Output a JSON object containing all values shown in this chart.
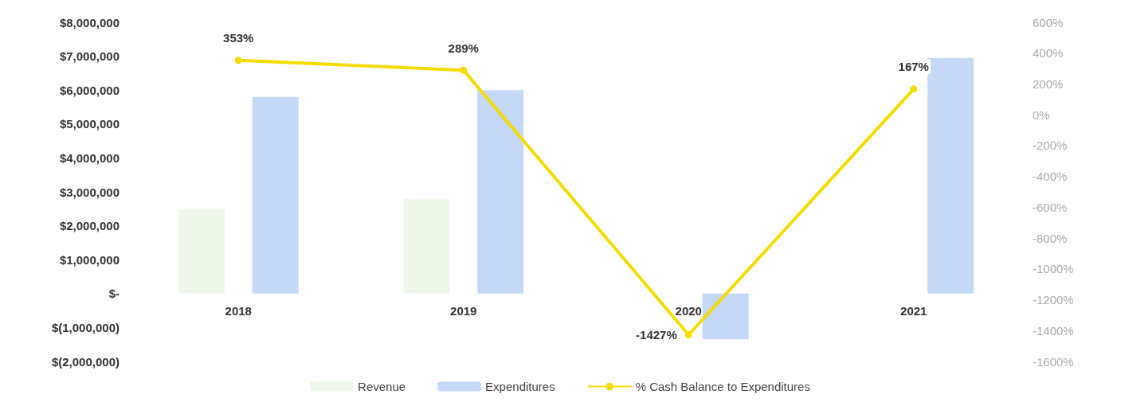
{
  "chart_data": {
    "type": "bar",
    "categories": [
      "2018",
      "2019",
      "2020",
      "2021"
    ],
    "series": [
      {
        "name": "Revenue",
        "color": "#eef7ea",
        "values": [
          2500000,
          2800000,
          null,
          null
        ]
      },
      {
        "name": "Expenditures",
        "color": "#c5d8f7",
        "values": [
          5800000,
          6000000,
          -1350000,
          6950000
        ]
      },
      {
        "name": "% Cash Balance to Expenditures",
        "type": "line",
        "axis": "y2",
        "color": "#f5dc00",
        "values": [
          353,
          289,
          -1427,
          167
        ],
        "value_labels": [
          "353%",
          "289%",
          "-1427%",
          "167%"
        ]
      }
    ],
    "ylim": [
      -2000000,
      8000000
    ],
    "yticks": [
      {
        "value": -2000000,
        "label": "$(2,000,000)"
      },
      {
        "value": -1000000,
        "label": "$(1,000,000)"
      },
      {
        "value": 0,
        "label": "$-"
      },
      {
        "value": 1000000,
        "label": "$1,000,000"
      },
      {
        "value": 2000000,
        "label": "$2,000,000"
      },
      {
        "value": 3000000,
        "label": "$3,000,000"
      },
      {
        "value": 4000000,
        "label": "$4,000,000"
      },
      {
        "value": 5000000,
        "label": "$5,000,000"
      },
      {
        "value": 6000000,
        "label": "$6,000,000"
      },
      {
        "value": 7000000,
        "label": "$7,000,000"
      },
      {
        "value": 8000000,
        "label": "$8,000,000"
      }
    ],
    "y2lim": [
      -1600,
      600
    ],
    "y2ticks": [
      {
        "value": -1600,
        "label": "-1600%"
      },
      {
        "value": -1400,
        "label": "-1400%"
      },
      {
        "value": -1200,
        "label": "-1200%"
      },
      {
        "value": -1000,
        "label": "-1000%"
      },
      {
        "value": -800,
        "label": "-800%"
      },
      {
        "value": -600,
        "label": "-600%"
      },
      {
        "value": -400,
        "label": "-400%"
      },
      {
        "value": -200,
        "label": "-200%"
      },
      {
        "value": 0,
        "label": "0%"
      },
      {
        "value": 200,
        "label": "200%"
      },
      {
        "value": 400,
        "label": "400%"
      },
      {
        "value": 600,
        "label": "600%"
      }
    ],
    "grid": false,
    "legend": "bottom",
    "marker": "circle"
  }
}
